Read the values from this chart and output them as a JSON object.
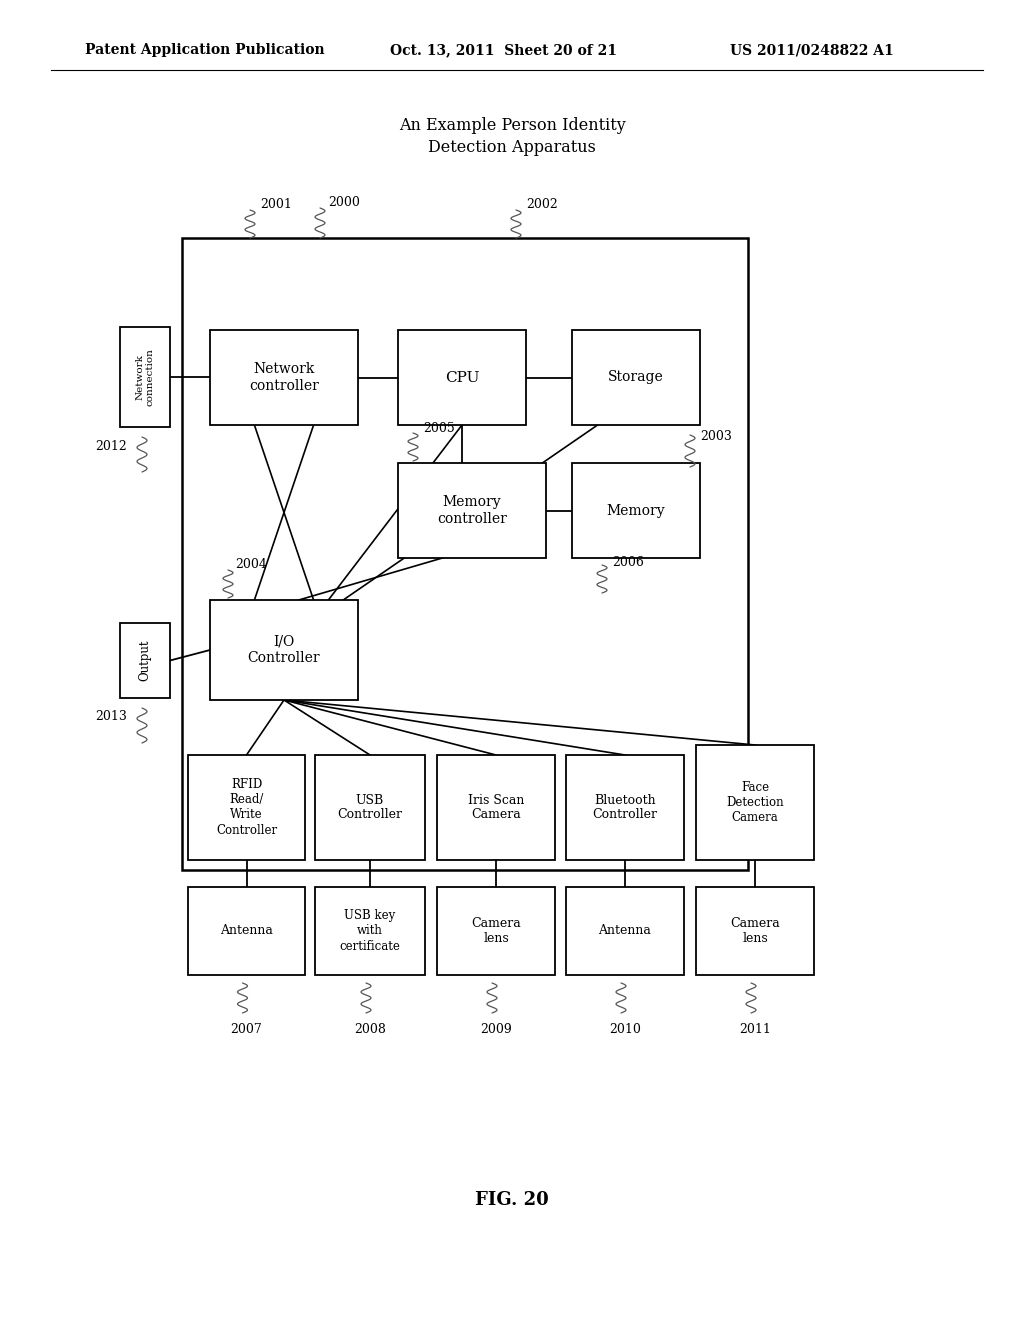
{
  "title_line1": "An Example Person Identity",
  "title_line2": "Detection Apparatus",
  "header": "Patent Application Publication",
  "header_date": "Oct. 13, 2011  Sheet 20 of 21",
  "header_patent": "US 2011/0248822 A1",
  "fig_label": "FIG. 20",
  "bg_color": "#ffffff",
  "box_color": "#ffffff",
  "box_edge": "#000000",
  "text_color": "#000000"
}
